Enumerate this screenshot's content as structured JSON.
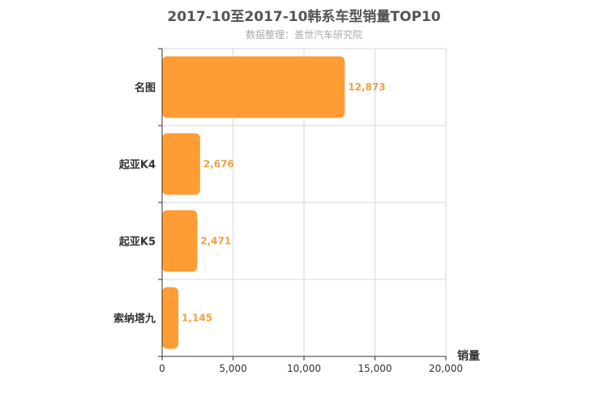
{
  "colors": {
    "bar": "#ff9c33",
    "label": "#f0a040",
    "grid": "#d8d8d8",
    "axis": "#333333"
  },
  "chart_data": {
    "type": "bar",
    "orientation": "horizontal",
    "title": "2017-10至2017-10韩系车型销量TOP10",
    "subtitle": "数据整理：盖世汽车研究院",
    "xlabel": "销量",
    "ylabel": "",
    "categories": [
      "名图",
      "起亚K4",
      "起亚K5",
      "索纳塔九"
    ],
    "values": [
      12873,
      2676,
      2471,
      1145
    ],
    "value_labels": [
      "12,873",
      "2,676",
      "2,471",
      "1,145"
    ],
    "xlim": [
      0,
      20000
    ],
    "xticks": [
      0,
      5000,
      10000,
      15000,
      20000
    ],
    "xtick_labels": [
      "0",
      "5,000",
      "10,000",
      "15,000",
      "20,000"
    ],
    "grid": true,
    "legend": "none"
  }
}
